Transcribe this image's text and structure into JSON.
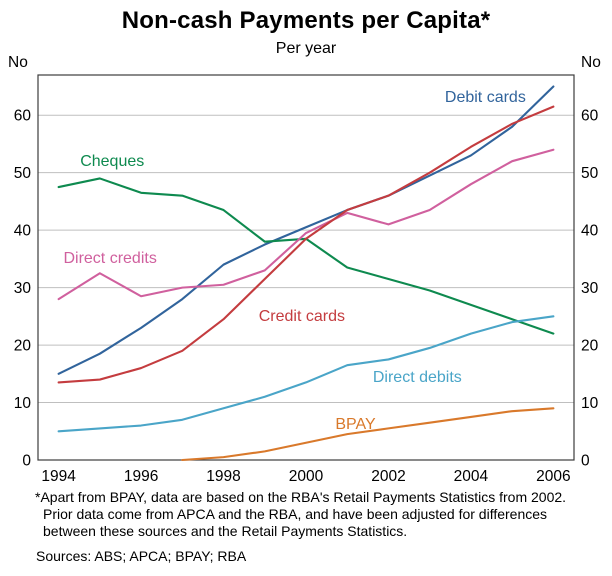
{
  "header": {
    "title": "Non-cash Payments per Capita*",
    "subtitle": "Per year"
  },
  "axis_unit_label": "No",
  "chart_data": {
    "type": "line",
    "x": [
      1994,
      1995,
      1996,
      1997,
      1998,
      1999,
      2000,
      2001,
      2002,
      2003,
      2004,
      2005,
      2006
    ],
    "x_ticks": [
      1994,
      1996,
      1998,
      2000,
      2002,
      2004,
      2006
    ],
    "x_tick_labels": [
      "1994",
      "1996",
      "1998",
      "2000",
      "2002",
      "2004",
      "2006"
    ],
    "xlim": [
      1993.5,
      2006.5
    ],
    "ylim": [
      0,
      67
    ],
    "y_ticks": [
      0,
      10,
      20,
      30,
      40,
      50,
      60
    ],
    "grid": "horizontal",
    "legend_position": "inline-annotations",
    "title": "Non-cash Payments per Capita*",
    "xlabel": "",
    "ylabel": "No",
    "series": [
      {
        "name": "Debit cards",
        "color": "#31649C",
        "values": [
          15,
          18.5,
          23,
          28,
          34,
          37.5,
          40.5,
          43.5,
          46,
          49.5,
          53,
          58,
          65
        ]
      },
      {
        "name": "Cheques",
        "color": "#0E8A4F",
        "values": [
          47.5,
          49,
          46.5,
          46,
          43.5,
          38,
          38.5,
          33.5,
          31.5,
          29.5,
          27,
          24.5,
          22
        ]
      },
      {
        "name": "Direct credits",
        "color": "#D0609E",
        "values": [
          28,
          32.5,
          28.5,
          30,
          30.5,
          33,
          39.5,
          43,
          41,
          43.5,
          48,
          52,
          54
        ]
      },
      {
        "name": "Credit cards",
        "color": "#C43C3F",
        "values": [
          13.5,
          14,
          16,
          19,
          24.5,
          31.5,
          38.5,
          43.5,
          46,
          50,
          54.5,
          58.5,
          61.5
        ]
      },
      {
        "name": "Direct debits",
        "color": "#4AA5C8",
        "values": [
          5,
          5.5,
          6,
          7,
          9,
          11,
          13.5,
          16.5,
          17.5,
          19.5,
          22,
          24,
          25
        ]
      },
      {
        "name": "BPAY",
        "color": "#D9792B",
        "values": [
          null,
          null,
          null,
          0,
          0.5,
          1.5,
          3,
          4.5,
          5.5,
          6.5,
          7.5,
          8.5,
          9
        ]
      }
    ],
    "annotations": [
      {
        "text": "Debit cards",
        "x": 2004.35,
        "y": 62.3,
        "color": "#31649C"
      },
      {
        "text": "Cheques",
        "x": 1995.3,
        "y": 51.2,
        "color": "#0E8A4F"
      },
      {
        "text": "Direct credits",
        "x": 1995.25,
        "y": 34.3,
        "color": "#D0609E"
      },
      {
        "text": "Credit cards",
        "x": 1999.9,
        "y": 24.2,
        "color": "#C43C3F"
      },
      {
        "text": "Direct debits",
        "x": 2002.7,
        "y": 13.6,
        "color": "#4AA5C8"
      },
      {
        "text": "BPAY",
        "x": 2001.2,
        "y": 5.4,
        "color": "#D9792B"
      }
    ],
    "colors": {
      "grid": "#BFBFBF",
      "frame": "#3C3C3C"
    }
  },
  "footnote": "*Apart from BPAY, data are based on the RBA's Retail Payments Statistics from 2002. Prior data come from APCA and the RBA, and have been adjusted for differences between these sources and the Retail Payments Statistics.",
  "sources": "Sources: ABS; APCA; BPAY; RBA"
}
